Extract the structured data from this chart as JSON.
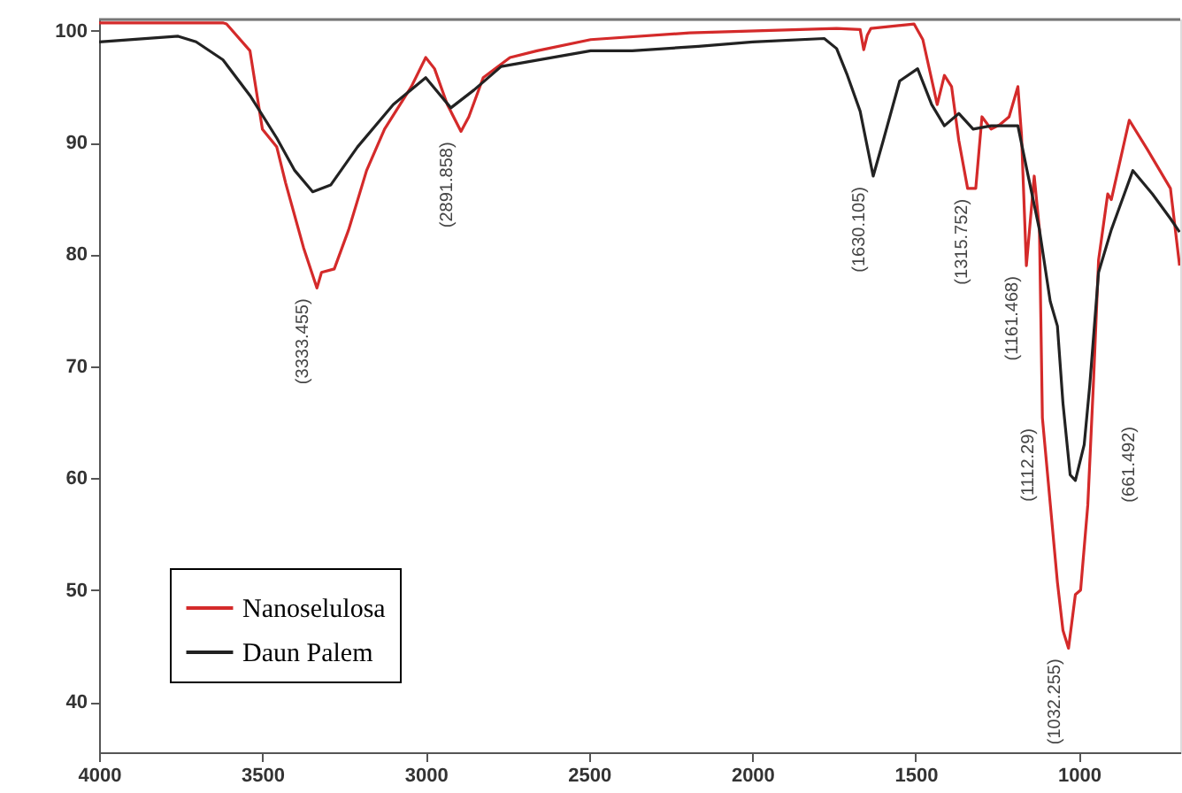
{
  "chart_data": {
    "type": "line",
    "xlim": [
      4000,
      690
    ],
    "ylim": [
      35.5,
      101
    ],
    "xticks": [
      4000,
      3500,
      3000,
      2500,
      2000,
      1500,
      1000
    ],
    "yticks": [
      40,
      50,
      60,
      70,
      80,
      90,
      100
    ],
    "grid": false,
    "legend": "bottom left",
    "marker": "none",
    "line_style": "solid",
    "series": [
      {
        "name": "Nanoselulosa",
        "color": "#d42a2a",
        "x": [
          4000,
          3703,
          3621,
          3610,
          3538,
          3500,
          3456,
          3429,
          3374,
          3333,
          3319,
          3280,
          3236,
          3181,
          3126,
          3044,
          3000,
          2973,
          2934,
          2892,
          2868,
          2824,
          2742,
          2659,
          2495,
          2192,
          1742,
          1670,
          1659,
          1648,
          1637,
          1505,
          1478,
          1434,
          1412,
          1390,
          1368,
          1341,
          1316,
          1297,
          1269,
          1242,
          1214,
          1187,
          1176,
          1161,
          1137,
          1121,
          1112,
          1066,
          1049,
          1032,
          1011,
          995,
          973,
          956,
          940,
          912,
          901,
          846,
          791,
          720,
          692
        ],
        "values": [
          100.7,
          100.7,
          100.7,
          100.6,
          98.2,
          91.2,
          89.6,
          86.4,
          80.6,
          77.0,
          78.4,
          78.7,
          82.2,
          87.5,
          91.2,
          95.0,
          97.6,
          96.6,
          93.4,
          91.0,
          92.3,
          95.8,
          97.6,
          98.2,
          99.2,
          99.8,
          100.2,
          100.1,
          98.3,
          99.6,
          100.2,
          100.6,
          99.2,
          93.4,
          96.0,
          95.0,
          90.2,
          85.9,
          85.9,
          92.3,
          91.2,
          91.6,
          92.3,
          95.0,
          90.7,
          79.0,
          87.0,
          82.2,
          65.4,
          50.7,
          46.4,
          44.8,
          49.6,
          50.0,
          57.6,
          68.3,
          79.5,
          85.4,
          84.9,
          92.0,
          89.4,
          85.9,
          79.0
        ]
      },
      {
        "name": "Daun Palem",
        "color": "#222222",
        "x": [
          4000,
          3758,
          3703,
          3621,
          3538,
          3456,
          3401,
          3346,
          3291,
          3209,
          3099,
          3000,
          2923,
          2852,
          2769,
          2495,
          2368,
          2165,
          1999,
          1780,
          1742,
          1709,
          1670,
          1630,
          1599,
          1549,
          1494,
          1451,
          1412,
          1368,
          1324,
          1269,
          1187,
          1159,
          1121,
          1088,
          1066,
          1049,
          1027,
          1011,
          984,
          967,
          940,
          901,
          835,
          775,
          720,
          692
        ],
        "values": [
          99.0,
          99.5,
          99.0,
          97.4,
          94.2,
          90.4,
          87.5,
          85.6,
          86.2,
          89.6,
          93.4,
          95.8,
          93.1,
          94.7,
          96.8,
          98.2,
          98.2,
          98.6,
          99.0,
          99.3,
          98.4,
          96.0,
          92.8,
          87.0,
          90.2,
          95.5,
          96.6,
          93.4,
          91.5,
          92.6,
          91.2,
          91.5,
          91.5,
          87.5,
          82.2,
          75.8,
          73.6,
          66.7,
          60.3,
          59.8,
          63.0,
          68.3,
          78.4,
          82.2,
          87.5,
          85.4,
          83.2,
          82.0
        ]
      }
    ],
    "annotations": [
      {
        "text": "(3333.455)",
        "x": 3333,
        "y": 77.0
      },
      {
        "text": "(2891.858)",
        "x": 2892,
        "y": 91.0
      },
      {
        "text": "(1630.105)",
        "x": 1630,
        "y": 87.0
      },
      {
        "text": "(1315.752)",
        "x": 1316,
        "y": 85.9
      },
      {
        "text": "(1161.468)",
        "x": 1161,
        "y": 79.0
      },
      {
        "text": "(1112.29)",
        "x": 1112,
        "y": 65.4
      },
      {
        "text": "(1032.255)",
        "x": 1032,
        "y": 44.8
      },
      "(661.492)"
    ]
  }
}
